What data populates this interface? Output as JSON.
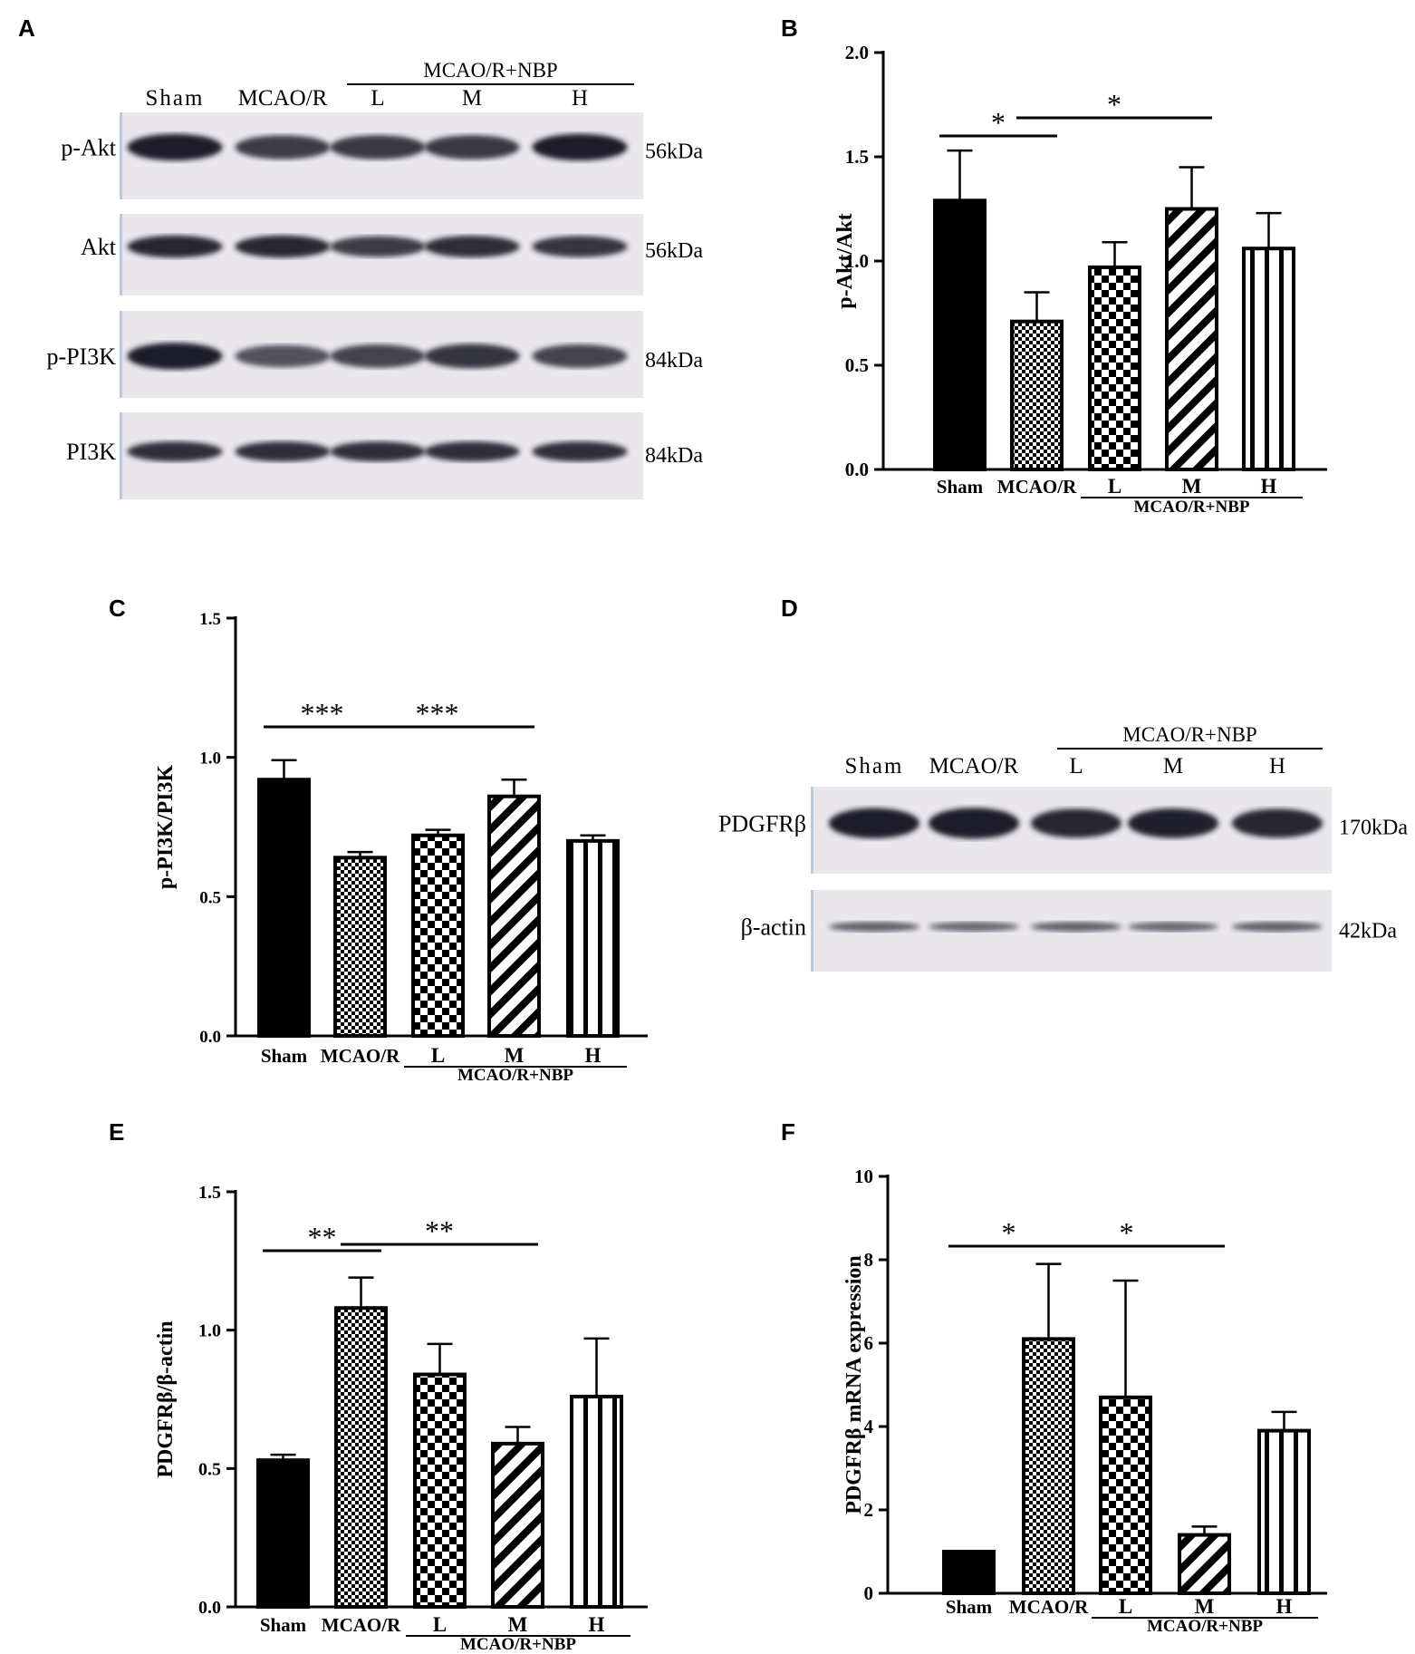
{
  "colors": {
    "ink": "#000000",
    "blot_bg": "#e9e6ec",
    "blot_band": "#1f1a2a",
    "accent_edge": "#9bb6d6"
  },
  "panels": {
    "A": {
      "letter": "A",
      "group_header": "MCAO/R+NBP",
      "lanes": [
        "Sham",
        "MCAO/R",
        "L",
        "M",
        "H"
      ],
      "rows": [
        {
          "label": "p-Akt",
          "size": "56kDa",
          "band_strength": [
            0.95,
            0.7,
            0.72,
            0.72,
            0.95
          ]
        },
        {
          "label": "Akt",
          "size": "56kDa",
          "band_strength": [
            0.85,
            0.85,
            0.7,
            0.8,
            0.75
          ]
        },
        {
          "label": "p-PI3K",
          "size": "84kDa",
          "band_strength": [
            0.95,
            0.55,
            0.65,
            0.75,
            0.65
          ]
        },
        {
          "label": "PI3K",
          "size": "84kDa",
          "band_strength": [
            0.8,
            0.8,
            0.8,
            0.8,
            0.8
          ]
        }
      ]
    },
    "D": {
      "letter": "D",
      "group_header": "MCAO/R+NBP",
      "lanes": [
        "Sham",
        "MCAO/R",
        "L",
        "M",
        "H"
      ],
      "rows": [
        {
          "label": "PDGFRβ",
          "size": "170kDa",
          "band_strength": [
            0.95,
            1.0,
            0.85,
            0.9,
            0.85
          ]
        },
        {
          "label": "β-actin",
          "size": "42kDa",
          "band_strength": [
            0.45,
            0.4,
            0.45,
            0.4,
            0.45
          ]
        }
      ]
    }
  },
  "chart_data": [
    {
      "panel": "B",
      "letter": "B",
      "type": "bar",
      "categories": [
        "Sham",
        "MCAO/R",
        "L",
        "M",
        "H"
      ],
      "group_label": "MCAO/R+NBP",
      "values": [
        1.29,
        0.71,
        0.97,
        1.25,
        1.06
      ],
      "errors": [
        0.24,
        0.14,
        0.12,
        0.2,
        0.17
      ],
      "patterns": [
        "solid",
        "fine-check",
        "check",
        "diagonal",
        "vertical"
      ],
      "ylabel": "p-Akt/Akt",
      "ylim": [
        0,
        2.0
      ],
      "yticks": [
        "0.0",
        "0.5",
        "1.0",
        "1.5",
        "2.0"
      ],
      "significance": [
        {
          "from": 0,
          "to": 1,
          "label": "*"
        },
        {
          "from": 1,
          "to": 3,
          "label": "*"
        }
      ]
    },
    {
      "panel": "C",
      "letter": "C",
      "type": "bar",
      "categories": [
        "Sham",
        "MCAO/R",
        "L",
        "M",
        "H"
      ],
      "group_label": "MCAO/R+NBP",
      "values": [
        0.92,
        0.64,
        0.72,
        0.86,
        0.7
      ],
      "errors": [
        0.07,
        0.02,
        0.02,
        0.06,
        0.02
      ],
      "patterns": [
        "solid",
        "fine-check",
        "check",
        "diagonal",
        "vertical"
      ],
      "ylabel": "p-PI3K/PI3K",
      "ylim": [
        0,
        1.5
      ],
      "yticks": [
        "0.0",
        "0.5",
        "1.0",
        "1.5"
      ],
      "significance": [
        {
          "from": 0,
          "to": 1,
          "label": "***"
        },
        {
          "from": 1,
          "to": 3,
          "label": "***"
        }
      ]
    },
    {
      "panel": "E",
      "letter": "E",
      "type": "bar",
      "categories": [
        "Sham",
        "MCAO/R",
        "L",
        "M",
        "H"
      ],
      "group_label": "MCAO/R+NBP",
      "values": [
        0.53,
        1.08,
        0.84,
        0.59,
        0.76
      ],
      "errors": [
        0.02,
        0.11,
        0.11,
        0.06,
        0.21
      ],
      "patterns": [
        "solid",
        "fine-check",
        "check",
        "diagonal",
        "vertical"
      ],
      "ylabel": "PDGFRβ/β-actin",
      "ylim": [
        0,
        1.5
      ],
      "yticks": [
        "0.0",
        "0.5",
        "1.0",
        "1.5"
      ],
      "significance": [
        {
          "from": 0,
          "to": 1,
          "label": "**"
        },
        {
          "from": 1,
          "to": 3,
          "label": "**"
        }
      ]
    },
    {
      "panel": "F",
      "letter": "F",
      "type": "bar",
      "categories": [
        "Sham",
        "MCAO/R",
        "L",
        "M",
        "H"
      ],
      "group_label": "MCAO/R+NBP",
      "values": [
        1.0,
        6.1,
        4.7,
        1.4,
        3.9
      ],
      "errors": [
        0.0,
        1.8,
        2.8,
        0.2,
        0.45
      ],
      "patterns": [
        "solid",
        "fine-check",
        "check",
        "diagonal",
        "vertical"
      ],
      "ylabel": "PDGFRβ mRNA expression",
      "ylim": [
        0,
        10
      ],
      "yticks": [
        "0",
        "2",
        "4",
        "6",
        "8",
        "10"
      ],
      "significance": [
        {
          "from": 0,
          "to": 1,
          "label": "*"
        },
        {
          "from": 1,
          "to": 3,
          "label": "*"
        }
      ]
    }
  ]
}
